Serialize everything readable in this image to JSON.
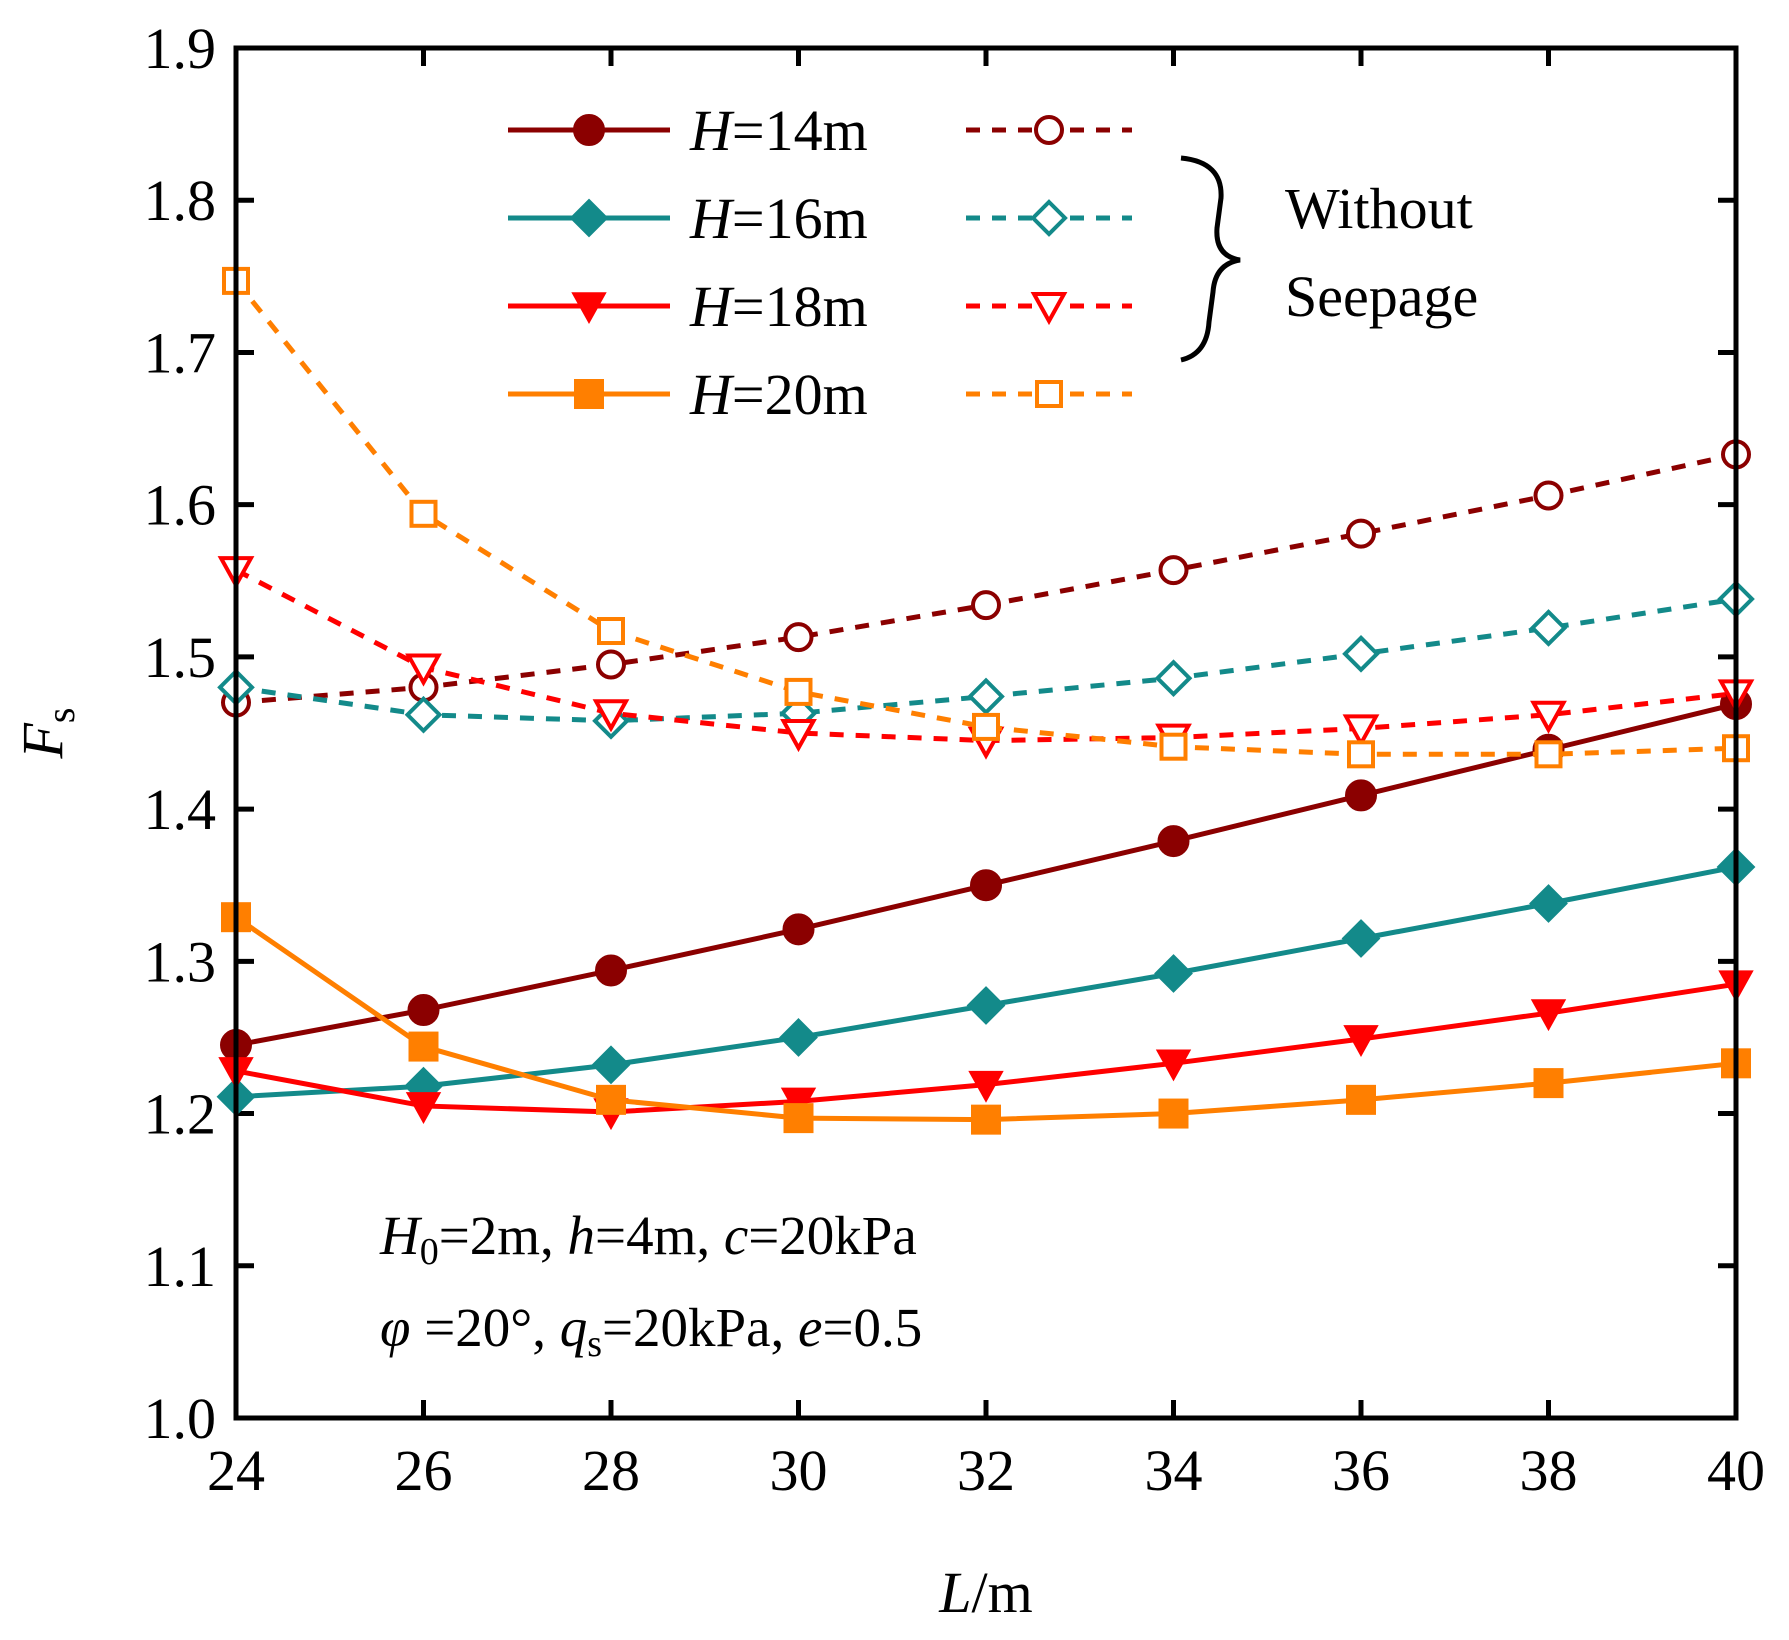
{
  "chart_data": {
    "type": "line",
    "xlabel": {
      "italic": "L",
      "rest": "/m"
    },
    "ylabel": {
      "italic": "F",
      "sub": "s"
    },
    "xlim": [
      24,
      40
    ],
    "ylim": [
      1.0,
      1.9
    ],
    "x_ticks": [
      "24",
      "26",
      "28",
      "30",
      "32",
      "34",
      "36",
      "38",
      "40"
    ],
    "y_ticks": [
      "1.0",
      "1.1",
      "1.2",
      "1.3",
      "1.4",
      "1.5",
      "1.6",
      "1.7",
      "1.8",
      "1.9"
    ],
    "x": [
      24,
      26,
      28,
      30,
      32,
      34,
      36,
      38,
      40
    ],
    "series": [
      {
        "name": "H=14m",
        "label_italic": "H",
        "label_rest": "=14m",
        "color": "#8b0000",
        "marker": "circle",
        "style": "solid",
        "values": [
          1.245,
          1.268,
          1.294,
          1.321,
          1.35,
          1.379,
          1.409,
          1.439,
          1.469
        ]
      },
      {
        "name": "H=16m",
        "label_italic": "H",
        "label_rest": "=16m",
        "color": "#138a8a",
        "marker": "diamond",
        "style": "solid",
        "values": [
          1.211,
          1.218,
          1.232,
          1.25,
          1.271,
          1.292,
          1.315,
          1.338,
          1.362
        ]
      },
      {
        "name": "H=18m",
        "label_italic": "H",
        "label_rest": "=18m",
        "color": "#ff0000",
        "marker": "triangle-down",
        "style": "solid",
        "values": [
          1.228,
          1.205,
          1.201,
          1.208,
          1.219,
          1.233,
          1.249,
          1.266,
          1.285
        ]
      },
      {
        "name": "H=20m",
        "label_italic": "H",
        "label_rest": "=20m",
        "color": "#ff7f00",
        "marker": "square",
        "style": "solid",
        "values": [
          1.329,
          1.244,
          1.209,
          1.197,
          1.196,
          1.2,
          1.209,
          1.22,
          1.233
        ]
      },
      {
        "name": "H=14m without seepage",
        "color": "#8b0000",
        "marker": "circle-open",
        "style": "dashed",
        "values": [
          1.47,
          1.48,
          1.495,
          1.513,
          1.534,
          1.557,
          1.581,
          1.606,
          1.633
        ]
      },
      {
        "name": "H=16m without seepage",
        "color": "#138a8a",
        "marker": "diamond-open",
        "style": "dashed",
        "values": [
          1.48,
          1.462,
          1.458,
          1.463,
          1.474,
          1.486,
          1.502,
          1.519,
          1.538
        ]
      },
      {
        "name": "H=18m without seepage",
        "color": "#ff0000",
        "marker": "triangle-down-open",
        "style": "dashed",
        "values": [
          1.557,
          1.493,
          1.463,
          1.45,
          1.445,
          1.447,
          1.453,
          1.462,
          1.476
        ]
      },
      {
        "name": "H=20m without seepage",
        "color": "#ff7f00",
        "marker": "square-open",
        "style": "dashed",
        "values": [
          1.747,
          1.594,
          1.517,
          1.477,
          1.454,
          1.441,
          1.436,
          1.436,
          1.44
        ]
      }
    ],
    "legend": {
      "placement": "top-center",
      "brace_label_line1": "Without",
      "brace_label_line2": "Seepage"
    },
    "annotation": {
      "line1": {
        "a_i": "H",
        "a_sub": "0",
        "a_t": "=2m, ",
        "b_i": "h",
        "b_t": "=4m, ",
        "c_i": "c",
        "c_t": "=20kPa"
      },
      "line2": {
        "a_i": "φ",
        "a_t": " =20°, ",
        "b_i": "q",
        "b_sub": "s",
        "b_t": "=20kPa, ",
        "c_i": "e",
        "c_t": "=0.5"
      }
    },
    "grid": false
  }
}
